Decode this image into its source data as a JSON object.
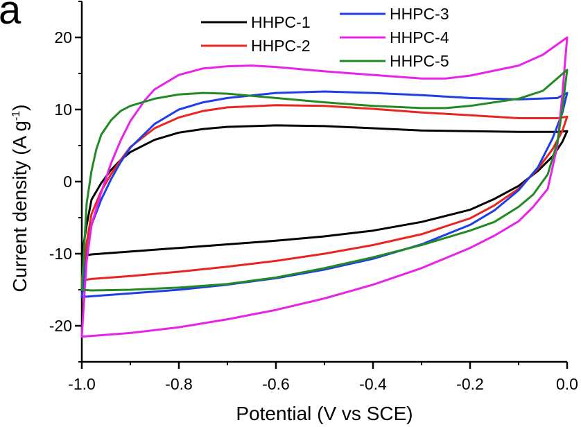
{
  "panel_label": "a",
  "chart_data": {
    "type": "line",
    "xlabel": "Potential (V vs SCE)",
    "ylabel_main": "Current density (A g",
    "ylabel_sup": "-1",
    "ylabel_tail": ")",
    "xlim": [
      -1.0,
      0.0
    ],
    "ylim": [
      -25,
      25
    ],
    "x_ticks": [
      -1.0,
      -0.8,
      -0.6,
      -0.4,
      -0.2,
      0.0
    ],
    "x_tick_labels": [
      "-1.0",
      "-0.8",
      "-0.6",
      "-0.4",
      "-0.2",
      "0.0"
    ],
    "y_ticks": [
      -20,
      -10,
      0,
      10,
      20
    ],
    "y_tick_labels": [
      "-20",
      "-10",
      "0",
      "10",
      "20"
    ],
    "grid": false,
    "legend_position": "top",
    "series": [
      {
        "name": "HHPC-1",
        "color": "#000000",
        "points": [
          [
            -1.0,
            -10.3
          ],
          [
            -0.99,
            -6.0
          ],
          [
            -0.98,
            -2.5
          ],
          [
            -0.96,
            -0.2
          ],
          [
            -0.94,
            1.6
          ],
          [
            -0.92,
            3.0
          ],
          [
            -0.9,
            4.1
          ],
          [
            -0.85,
            5.8
          ],
          [
            -0.8,
            6.8
          ],
          [
            -0.75,
            7.3
          ],
          [
            -0.7,
            7.6
          ],
          [
            -0.6,
            7.8
          ],
          [
            -0.5,
            7.7
          ],
          [
            -0.4,
            7.4
          ],
          [
            -0.3,
            7.1
          ],
          [
            -0.2,
            7.0
          ],
          [
            -0.1,
            6.9
          ],
          [
            -0.02,
            6.9
          ],
          [
            0.0,
            7.0
          ],
          [
            -0.01,
            5.5
          ],
          [
            -0.03,
            3.5
          ],
          [
            -0.06,
            1.5
          ],
          [
            -0.1,
            -0.6
          ],
          [
            -0.15,
            -2.4
          ],
          [
            -0.2,
            -3.9
          ],
          [
            -0.3,
            -5.6
          ],
          [
            -0.4,
            -6.8
          ],
          [
            -0.5,
            -7.6
          ],
          [
            -0.6,
            -8.2
          ],
          [
            -0.7,
            -8.7
          ],
          [
            -0.8,
            -9.2
          ],
          [
            -0.9,
            -9.7
          ],
          [
            -0.98,
            -10.1
          ],
          [
            -1.0,
            -10.3
          ]
        ]
      },
      {
        "name": "HHPC-2",
        "color": "#e8251f",
        "points": [
          [
            -1.0,
            -13.7
          ],
          [
            -0.99,
            -8.5
          ],
          [
            -0.98,
            -4.5
          ],
          [
            -0.96,
            -1.3
          ],
          [
            -0.94,
            1.0
          ],
          [
            -0.92,
            3.0
          ],
          [
            -0.9,
            4.8
          ],
          [
            -0.85,
            7.4
          ],
          [
            -0.8,
            8.9
          ],
          [
            -0.75,
            9.8
          ],
          [
            -0.7,
            10.3
          ],
          [
            -0.6,
            10.6
          ],
          [
            -0.5,
            10.5
          ],
          [
            -0.4,
            10.1
          ],
          [
            -0.3,
            9.6
          ],
          [
            -0.2,
            9.2
          ],
          [
            -0.1,
            8.8
          ],
          [
            -0.02,
            8.8
          ],
          [
            0.0,
            9.0
          ],
          [
            -0.01,
            7.0
          ],
          [
            -0.03,
            4.5
          ],
          [
            -0.06,
            1.8
          ],
          [
            -0.1,
            -1.0
          ],
          [
            -0.15,
            -3.3
          ],
          [
            -0.2,
            -5.1
          ],
          [
            -0.3,
            -7.3
          ],
          [
            -0.4,
            -8.8
          ],
          [
            -0.5,
            -10.0
          ],
          [
            -0.6,
            -11.0
          ],
          [
            -0.7,
            -11.8
          ],
          [
            -0.8,
            -12.5
          ],
          [
            -0.9,
            -13.1
          ],
          [
            -0.98,
            -13.5
          ],
          [
            -1.0,
            -13.7
          ]
        ]
      },
      {
        "name": "HHPC-3",
        "color": "#1f3ee8",
        "points": [
          [
            -1.0,
            -16.0
          ],
          [
            -0.99,
            -10.5
          ],
          [
            -0.98,
            -6.0
          ],
          [
            -0.96,
            -2.5
          ],
          [
            -0.94,
            0.3
          ],
          [
            -0.92,
            2.7
          ],
          [
            -0.9,
            4.7
          ],
          [
            -0.85,
            8.0
          ],
          [
            -0.8,
            10.0
          ],
          [
            -0.75,
            11.0
          ],
          [
            -0.7,
            11.6
          ],
          [
            -0.6,
            12.3
          ],
          [
            -0.5,
            12.5
          ],
          [
            -0.4,
            12.3
          ],
          [
            -0.3,
            12.0
          ],
          [
            -0.2,
            11.6
          ],
          [
            -0.1,
            11.4
          ],
          [
            -0.02,
            11.6
          ],
          [
            0.0,
            12.3
          ],
          [
            -0.01,
            9.5
          ],
          [
            -0.03,
            6.0
          ],
          [
            -0.06,
            2.0
          ],
          [
            -0.1,
            -1.2
          ],
          [
            -0.15,
            -4.0
          ],
          [
            -0.2,
            -6.0
          ],
          [
            -0.3,
            -8.7
          ],
          [
            -0.4,
            -10.7
          ],
          [
            -0.5,
            -12.2
          ],
          [
            -0.6,
            -13.4
          ],
          [
            -0.7,
            -14.3
          ],
          [
            -0.8,
            -15.0
          ],
          [
            -0.9,
            -15.5
          ],
          [
            -0.98,
            -15.9
          ],
          [
            -1.0,
            -16.0
          ]
        ]
      },
      {
        "name": "HHPC-4",
        "color": "#e823e8",
        "points": [
          [
            -1.0,
            -21.5
          ],
          [
            -0.995,
            -16.0
          ],
          [
            -0.99,
            -11.0
          ],
          [
            -0.98,
            -6.0
          ],
          [
            -0.96,
            -1.5
          ],
          [
            -0.94,
            2.5
          ],
          [
            -0.92,
            5.7
          ],
          [
            -0.9,
            8.4
          ],
          [
            -0.87,
            11.3
          ],
          [
            -0.85,
            12.8
          ],
          [
            -0.8,
            14.8
          ],
          [
            -0.75,
            15.7
          ],
          [
            -0.7,
            16.0
          ],
          [
            -0.65,
            16.1
          ],
          [
            -0.6,
            15.9
          ],
          [
            -0.5,
            15.3
          ],
          [
            -0.4,
            14.8
          ],
          [
            -0.3,
            14.3
          ],
          [
            -0.25,
            14.3
          ],
          [
            -0.2,
            14.7
          ],
          [
            -0.1,
            16.1
          ],
          [
            -0.05,
            17.6
          ],
          [
            0.0,
            20.0
          ],
          [
            -0.01,
            12.0
          ],
          [
            -0.02,
            5.0
          ],
          [
            -0.04,
            -1.0
          ],
          [
            -0.07,
            -3.5
          ],
          [
            -0.1,
            -5.5
          ],
          [
            -0.15,
            -7.5
          ],
          [
            -0.2,
            -9.2
          ],
          [
            -0.3,
            -12.0
          ],
          [
            -0.4,
            -14.3
          ],
          [
            -0.5,
            -16.2
          ],
          [
            -0.6,
            -17.8
          ],
          [
            -0.7,
            -19.1
          ],
          [
            -0.8,
            -20.2
          ],
          [
            -0.9,
            -21.0
          ],
          [
            -0.98,
            -21.4
          ],
          [
            -1.0,
            -21.5
          ]
        ]
      },
      {
        "name": "HHPC-5",
        "color": "#238a23",
        "points": [
          [
            -1.0,
            -15.0
          ],
          [
            -0.995,
            -9.0
          ],
          [
            -0.99,
            -3.0
          ],
          [
            -0.98,
            1.5
          ],
          [
            -0.97,
            4.5
          ],
          [
            -0.96,
            6.5
          ],
          [
            -0.94,
            8.5
          ],
          [
            -0.92,
            9.8
          ],
          [
            -0.9,
            10.5
          ],
          [
            -0.85,
            11.5
          ],
          [
            -0.8,
            12.1
          ],
          [
            -0.75,
            12.3
          ],
          [
            -0.7,
            12.2
          ],
          [
            -0.6,
            11.6
          ],
          [
            -0.5,
            11.0
          ],
          [
            -0.4,
            10.5
          ],
          [
            -0.3,
            10.2
          ],
          [
            -0.25,
            10.2
          ],
          [
            -0.2,
            10.5
          ],
          [
            -0.1,
            11.5
          ],
          [
            -0.05,
            12.6
          ],
          [
            0.0,
            15.5
          ],
          [
            -0.01,
            10.0
          ],
          [
            -0.02,
            5.5
          ],
          [
            -0.04,
            1.0
          ],
          [
            -0.07,
            -1.8
          ],
          [
            -0.1,
            -3.5
          ],
          [
            -0.15,
            -5.6
          ],
          [
            -0.2,
            -6.8
          ],
          [
            -0.3,
            -8.8
          ],
          [
            -0.4,
            -10.5
          ],
          [
            -0.5,
            -12.0
          ],
          [
            -0.6,
            -13.3
          ],
          [
            -0.7,
            -14.2
          ],
          [
            -0.8,
            -14.7
          ],
          [
            -0.9,
            -15.0
          ],
          [
            -0.98,
            -15.1
          ],
          [
            -1.0,
            -15.0
          ]
        ]
      }
    ]
  }
}
